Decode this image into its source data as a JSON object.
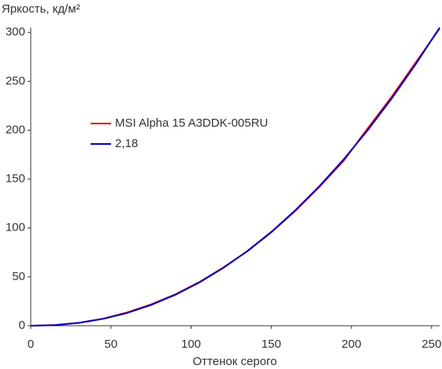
{
  "chart_data": {
    "type": "line",
    "y_label": "Яркость, кд/м²",
    "x_label": "Оттенок серого",
    "x": [
      0,
      15,
      30,
      45,
      60,
      75,
      90,
      105,
      120,
      135,
      150,
      165,
      180,
      195,
      210,
      225,
      240,
      255
    ],
    "series": [
      {
        "name": "MSI Alpha 15 A3DDK-005RU",
        "color": "#e00000",
        "values": [
          0,
          0.7,
          3.0,
          7.2,
          13.5,
          21.8,
          32.0,
          44.5,
          59.5,
          76.0,
          95.5,
          117.5,
          142.0,
          168.5,
          201.5,
          234.0,
          269.0,
          304
        ]
      },
      {
        "name": "2,18",
        "color": "#0000c0",
        "values": [
          0,
          0.63,
          2.9,
          7.0,
          13.0,
          21.2,
          31.5,
          44.1,
          59.0,
          76.3,
          95.9,
          118.1,
          142.7,
          169.9,
          199.7,
          232.2,
          267.3,
          305
        ]
      }
    ],
    "xlim": [
      0,
      255
    ],
    "xticks": [
      0,
      50,
      100,
      150,
      200,
      250
    ],
    "ylim": [
      0,
      305
    ],
    "yticks": [
      0,
      50,
      100,
      150,
      200,
      250,
      300
    ]
  }
}
